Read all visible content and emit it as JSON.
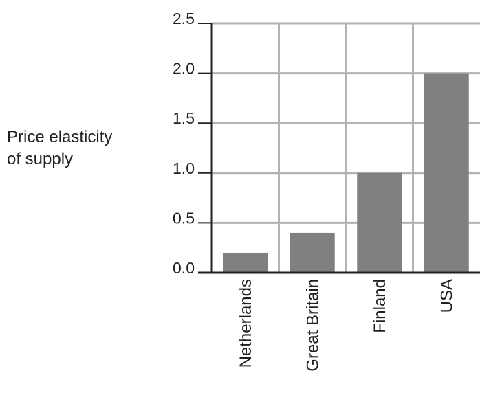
{
  "chart_data": {
    "type": "bar",
    "ylabel_lines": [
      "Price elasticity",
      "of supply"
    ],
    "categories": [
      "Netherlands",
      "Great Britain",
      "Finland",
      "USA"
    ],
    "values": [
      0.2,
      0.4,
      1.0,
      2.0
    ],
    "yticks": [
      "0.0",
      "0.5",
      "1.0",
      "1.5",
      "2.0",
      "2.5"
    ],
    "ylim": [
      0,
      2.5
    ],
    "grid": true,
    "colors": {
      "bar": "#808080",
      "grid": "#b3b3b3",
      "axis": "#231f20"
    }
  }
}
